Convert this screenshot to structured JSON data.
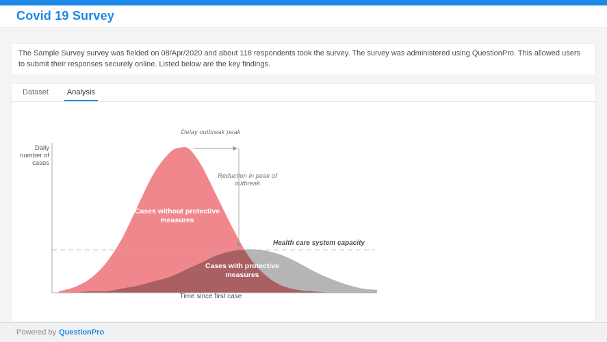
{
  "header": {
    "title": "Covid 19 Survey"
  },
  "summary": {
    "text": "The Sample Survey survey was fielded on 08/Apr/2020 and about 118 respondents took the survey. The survey was administered using QuestionPro. This allowed users to submit their responses securely online. Listed below are the key findings."
  },
  "tabs": {
    "dataset": "Dataset",
    "analysis": "Analysis",
    "active": "Analysis"
  },
  "footer": {
    "powered_by": "Powered by",
    "brand": "QuestionPro"
  },
  "colors": {
    "accent": "#1b87e6",
    "top_bar": "#1b87e6",
    "curve_without": "#f0878c",
    "curve_with": "#b5b5b5",
    "capacity_dash": "#b3b3b3",
    "axis": "#a8a8a8",
    "annotation_line": "#999999"
  },
  "chart_data": {
    "type": "area",
    "xlabel": "Time since first case",
    "ylabel": "Daily number of cases",
    "x_range": [
      0,
      100
    ],
    "y_range": [
      0,
      1.05
    ],
    "grid": false,
    "legend_position": "inside-curves",
    "series": [
      {
        "name": "Cases without protective measures",
        "color": "#f0878c",
        "x": [
          0,
          5,
          10,
          15,
          20,
          25,
          30,
          35,
          38,
          41,
          45,
          50,
          55,
          60,
          65,
          70,
          75,
          80,
          85,
          90
        ],
        "values": [
          0.01,
          0.04,
          0.1,
          0.21,
          0.38,
          0.61,
          0.83,
          0.97,
          1.0,
          0.99,
          0.87,
          0.65,
          0.43,
          0.24,
          0.12,
          0.05,
          0.02,
          0.01,
          0.0,
          0.0
        ]
      },
      {
        "name": "Cases with protective measures",
        "color": "#b5b5b5",
        "x": [
          5,
          10,
          15,
          20,
          25,
          30,
          35,
          40,
          45,
          50,
          55,
          60,
          65,
          70,
          75,
          80,
          85,
          90,
          95,
          100
        ],
        "values": [
          0.0,
          0.01,
          0.01,
          0.03,
          0.05,
          0.08,
          0.11,
          0.16,
          0.21,
          0.26,
          0.29,
          0.3,
          0.29,
          0.26,
          0.21,
          0.15,
          0.1,
          0.06,
          0.03,
          0.02
        ]
      }
    ],
    "capacity_line": {
      "label": "Health care system capacity",
      "value": 0.295,
      "style": "dashed"
    },
    "annotations": [
      {
        "id": "delay",
        "text": "Delay outbreak peak"
      },
      {
        "id": "reduction",
        "text": "Reduction in peak of outbreak"
      }
    ]
  }
}
